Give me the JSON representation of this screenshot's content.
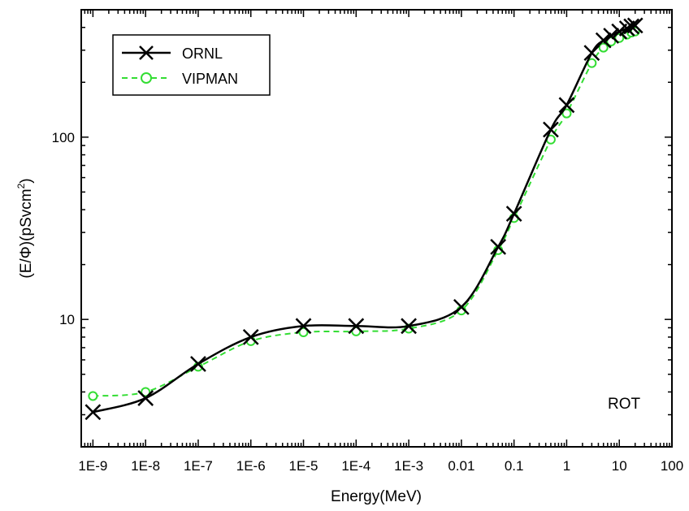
{
  "chart_data": {
    "type": "line",
    "xlabel": "Energy(MeV)",
    "ylabel_main": "(E/Φ)(pSvcm",
    "ylabel_sup": "2",
    "ylabel_close": ")",
    "x_scale": "log",
    "y_scale": "log",
    "xlim": [
      6e-10,
      100
    ],
    "ylim": [
      2,
      500
    ],
    "x_ticks": [
      {
        "value": 1e-09,
        "label": "1E-9"
      },
      {
        "value": 1e-08,
        "label": "1E-8"
      },
      {
        "value": 1e-07,
        "label": "1E-7"
      },
      {
        "value": 1e-06,
        "label": "1E-6"
      },
      {
        "value": 1e-05,
        "label": "1E-5"
      },
      {
        "value": 0.0001,
        "label": "1E-4"
      },
      {
        "value": 0.001,
        "label": "1E-3"
      },
      {
        "value": 0.01,
        "label": "0.01"
      },
      {
        "value": 0.1,
        "label": "0.1"
      },
      {
        "value": 1,
        "label": "1"
      },
      {
        "value": 10,
        "label": "10"
      },
      {
        "value": 100,
        "label": "100"
      }
    ],
    "y_ticks": [
      {
        "value": 10,
        "label": "10"
      },
      {
        "value": 100,
        "label": "100"
      }
    ],
    "legend_position": "top-left",
    "annotation": "ROT",
    "series": [
      {
        "name": "ORNL",
        "color": "#000000",
        "line": "solid",
        "marker": "x",
        "x": [
          1e-09,
          1e-08,
          1e-07,
          1e-06,
          1e-05,
          0.0001,
          0.001,
          0.01,
          0.05,
          0.1,
          0.5,
          1,
          3,
          5,
          7,
          10,
          14,
          17,
          20
        ],
        "y": [
          3.1,
          3.7,
          5.7,
          8.0,
          9.2,
          9.2,
          9.2,
          11.7,
          25,
          38,
          110,
          150,
          290,
          340,
          360,
          380,
          395,
          405,
          410
        ]
      },
      {
        "name": "VIPMAN",
        "color": "#33dd33",
        "line": "dashed",
        "marker": "o",
        "x": [
          1e-09,
          1e-08,
          1e-07,
          1e-06,
          1e-05,
          0.0001,
          0.001,
          0.01,
          0.05,
          0.1,
          0.5,
          1,
          3,
          5,
          7,
          10,
          14,
          17,
          20
        ],
        "y": [
          3.8,
          4.0,
          5.5,
          7.6,
          8.5,
          8.6,
          8.9,
          11.2,
          24,
          36,
          97,
          135,
          255,
          310,
          335,
          350,
          365,
          375,
          380
        ]
      }
    ]
  }
}
